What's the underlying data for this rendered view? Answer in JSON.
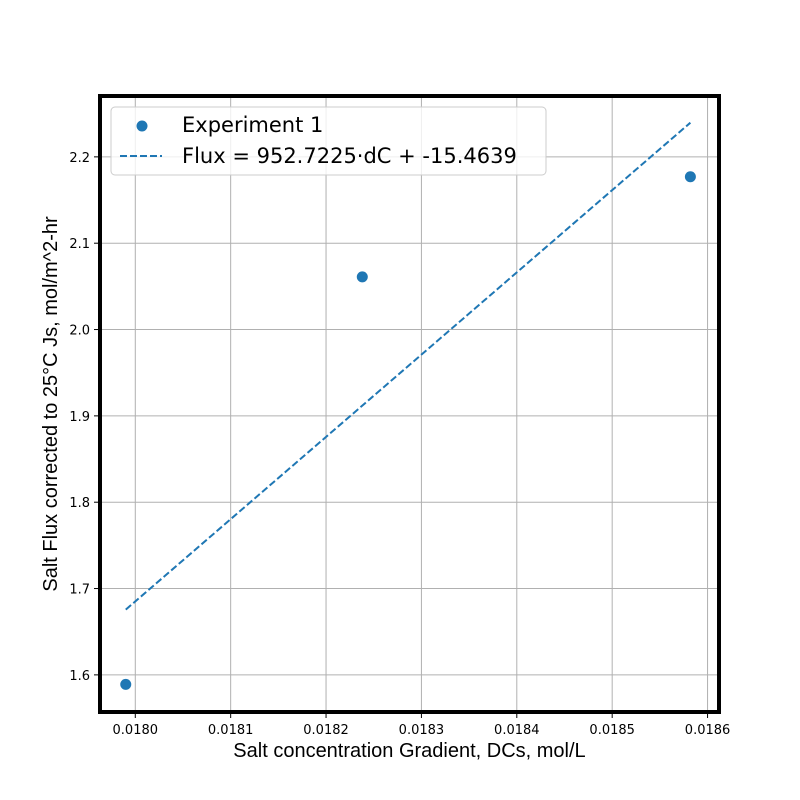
{
  "chart_data": {
    "type": "scatter",
    "title": "",
    "xlabel": "Salt concentration Gradient, DCs, mol/L",
    "ylabel": "Salt Flux corrected to 25°C Js, mol/m^2-hr",
    "xlim": [
      0.017963,
      0.018612
    ],
    "ylim": [
      1.557,
      2.2705
    ],
    "xticks": [
      0.018,
      0.0181,
      0.0182,
      0.0183,
      0.0184,
      0.0185,
      0.0186
    ],
    "xtick_labels": [
      "0.0180",
      "0.0181",
      "0.0182",
      "0.0183",
      "0.0184",
      "0.0185",
      "0.0186"
    ],
    "yticks": [
      1.6,
      1.7,
      1.8,
      1.9,
      2.0,
      2.1,
      2.2
    ],
    "ytick_labels": [
      "1.6",
      "1.7",
      "1.8",
      "1.9",
      "2.0",
      "2.1",
      "2.2"
    ],
    "grid": true,
    "legend_position": "top-left",
    "colors": {
      "series": "#1f77b4",
      "grid": "#b0b0b0",
      "frame": "#000000"
    },
    "series": [
      {
        "name": "Experiment 1",
        "kind": "scatter",
        "points": [
          {
            "x": 0.01799,
            "y": 1.589
          },
          {
            "x": 0.018238,
            "y": 2.061
          },
          {
            "x": 0.018582,
            "y": 2.177
          }
        ]
      },
      {
        "name": "Flux = 952.7225·dC + -15.4639",
        "kind": "line",
        "style": "dashed",
        "slope": 952.7225,
        "intercept": -15.4639,
        "x_range": [
          0.01799,
          0.018582
        ]
      }
    ]
  }
}
